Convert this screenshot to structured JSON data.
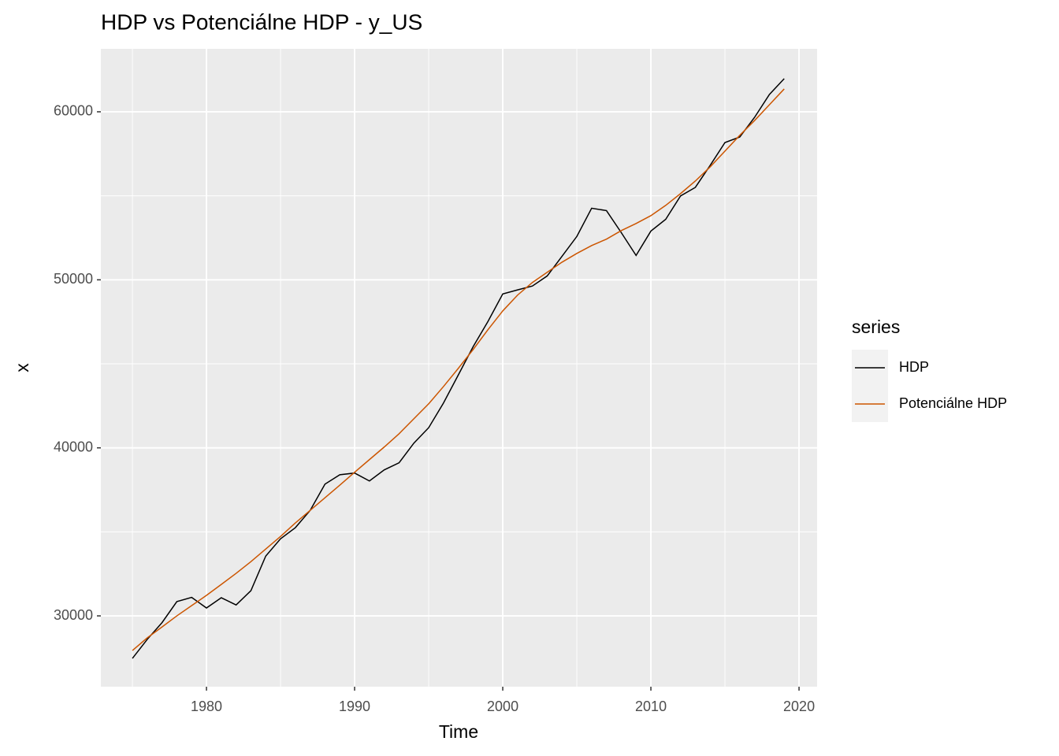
{
  "chart_data": {
    "type": "line",
    "title": "HDP vs Potenciálne HDP - y_US",
    "x_label": "Time",
    "y_label": "x",
    "legend_title": "series",
    "legend_position": "right",
    "grid": true,
    "x": [
      1975,
      1976,
      1977,
      1978,
      1979,
      1980,
      1981,
      1982,
      1983,
      1984,
      1985,
      1986,
      1987,
      1988,
      1989,
      1990,
      1991,
      1992,
      1993,
      1994,
      1995,
      1996,
      1997,
      1998,
      1999,
      2000,
      2001,
      2002,
      2003,
      2004,
      2005,
      2006,
      2007,
      2008,
      2009,
      2010,
      2011,
      2012,
      2013,
      2014,
      2015,
      2016,
      2017,
      2018,
      2019
    ],
    "series": [
      {
        "name": "HDP",
        "color": "#000000",
        "values": [
          27470,
          28600,
          29600,
          30850,
          31100,
          30470,
          31080,
          30650,
          31500,
          33560,
          34590,
          35250,
          36280,
          37840,
          38400,
          38500,
          38030,
          38690,
          39110,
          40280,
          41200,
          42670,
          44340,
          46020,
          47520,
          49160,
          49400,
          49630,
          50230,
          51400,
          52580,
          54260,
          54120,
          52810,
          51450,
          52900,
          53600,
          54990,
          55500,
          56810,
          58170,
          58500,
          59670,
          61030,
          61970
        ]
      },
      {
        "name": "Potenciálne HDP",
        "color": "#cc5500",
        "values": [
          27940,
          28690,
          29340,
          30000,
          30610,
          31220,
          31870,
          32530,
          33230,
          33980,
          34730,
          35530,
          36280,
          37030,
          37780,
          38550,
          39300,
          40050,
          40840,
          41730,
          42620,
          43650,
          44730,
          45850,
          47030,
          48150,
          49090,
          49840,
          50450,
          51050,
          51570,
          52040,
          52420,
          52930,
          53350,
          53820,
          54430,
          55130,
          55880,
          56720,
          57660,
          58600,
          59480,
          60420,
          61360
        ]
      }
    ],
    "xlim": [
      1972.87,
      2021.22
    ],
    "xticks": [
      1980,
      1990,
      2000,
      2010,
      2020
    ],
    "ylim": [
      25785,
      63747
    ],
    "yticks": [
      30000,
      40000,
      50000,
      60000
    ]
  }
}
